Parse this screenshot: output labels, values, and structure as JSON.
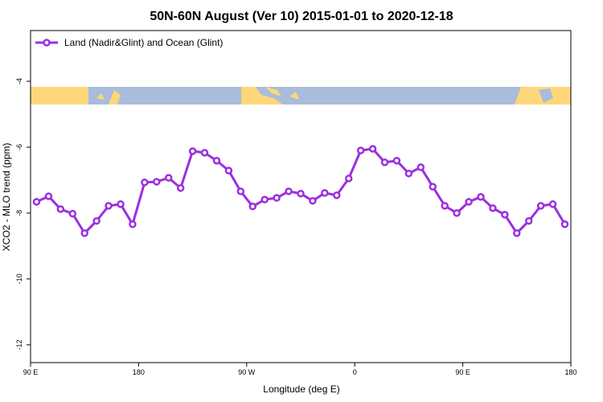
{
  "chart_data": {
    "type": "line",
    "title": "50N-60N August (Ver 10)   2015-01-01 to 2020-12-18",
    "x_label": "Longitude (deg E)",
    "y_label": "XCO2 - MLO trend (ppm)",
    "x": [
      95,
      105,
      115,
      125,
      135,
      145,
      155,
      165,
      175,
      185,
      195,
      205,
      215,
      225,
      235,
      245,
      255,
      265,
      275,
      285,
      295,
      305,
      315,
      325,
      335,
      345,
      355,
      365,
      375,
      385,
      395,
      405,
      415,
      425,
      435,
      445,
      455,
      465,
      475,
      485,
      495,
      505,
      515,
      525,
      535
    ],
    "series": [
      {
        "name": "Land (Nadir&Glint) and Ocean (Glint)",
        "color": "#9b2fe0",
        "values": [
          -7.66,
          -7.49,
          -7.88,
          -8.02,
          -8.61,
          -8.24,
          -7.78,
          -7.73,
          -8.34,
          -7.07,
          -7.05,
          -6.93,
          -7.24,
          -6.12,
          -6.17,
          -6.41,
          -6.71,
          -7.34,
          -7.8,
          -7.59,
          -7.54,
          -7.34,
          -7.41,
          -7.63,
          -7.39,
          -7.46,
          -6.95,
          -6.1,
          -6.05,
          -6.46,
          -6.41,
          -6.8,
          -6.61,
          -7.2,
          -7.78,
          -8.0,
          -7.66,
          -7.51,
          -7.85,
          -8.05,
          -8.61,
          -8.24,
          -7.78,
          -7.73,
          -8.34
        ]
      }
    ],
    "xlim": [
      90,
      540
    ],
    "xticks": [
      {
        "value": 90,
        "label": "90 E"
      },
      180,
      {
        "value": 270,
        "label": "90 W"
      },
      {
        "value": 360,
        "label": "0"
      },
      {
        "value": 450,
        "label": "90 E"
      },
      {
        "value": 540,
        "label": "180"
      }
    ],
    "ylim": [
      -12.54,
      -2.46
    ],
    "yticks": [
      -4,
      -6,
      -8,
      -10,
      -12
    ],
    "legend": "upper left"
  }
}
